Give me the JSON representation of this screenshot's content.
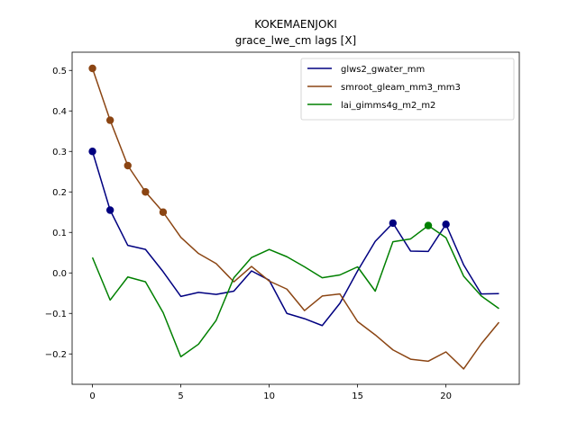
{
  "chart_data": {
    "type": "line",
    "title": "KOKEMAENJOKI",
    "subtitle": "grace_lwe_cm lags [X]",
    "xlabel": "",
    "ylabel": "",
    "xlim": [
      -1.15,
      24.15
    ],
    "ylim": [
      -0.275,
      0.545
    ],
    "xticks": [
      0,
      5,
      10,
      15,
      20
    ],
    "yticks": [
      -0.2,
      -0.1,
      0.0,
      0.1,
      0.2,
      0.3,
      0.4,
      0.5
    ],
    "ytick_labels": [
      "−0.2",
      "−0.1",
      "0.0",
      "0.1",
      "0.2",
      "0.3",
      "0.4",
      "0.5"
    ],
    "grid": false,
    "legend_position": "top-right",
    "x": [
      0,
      1,
      2,
      3,
      4,
      5,
      6,
      7,
      8,
      9,
      10,
      11,
      12,
      13,
      14,
      15,
      16,
      17,
      18,
      19,
      20,
      21,
      22,
      23
    ],
    "series": [
      {
        "name": "glws2_gwater_mm",
        "color": "#000080",
        "values": [
          0.3,
          0.155,
          0.068,
          0.058,
          0.003,
          -0.058,
          -0.048,
          -0.053,
          -0.045,
          0.005,
          -0.018,
          -0.1,
          -0.113,
          -0.13,
          -0.075,
          0.005,
          0.078,
          0.123,
          0.054,
          0.053,
          0.12,
          0.02,
          -0.052,
          -0.051
        ],
        "markers_at": [
          0,
          1,
          17,
          20
        ]
      },
      {
        "name": "smroot_gleam_mm3_mm3",
        "color": "#8B4513",
        "values": [
          0.505,
          0.377,
          0.265,
          0.2,
          0.15,
          0.088,
          0.048,
          0.023,
          -0.022,
          0.016,
          -0.02,
          -0.04,
          -0.093,
          -0.057,
          -0.052,
          -0.12,
          -0.153,
          -0.19,
          -0.213,
          -0.218,
          -0.195,
          -0.237,
          -0.175,
          -0.122
        ],
        "markers_at": [
          0,
          1,
          2,
          3,
          4
        ]
      },
      {
        "name": "lai_gimms4g_m2_m2",
        "color": "#008000",
        "values": [
          0.038,
          -0.067,
          -0.01,
          -0.022,
          -0.098,
          -0.207,
          -0.176,
          -0.117,
          -0.012,
          0.038,
          0.058,
          0.04,
          0.015,
          -0.012,
          -0.005,
          0.015,
          -0.045,
          0.077,
          0.084,
          0.117,
          0.087,
          -0.008,
          -0.057,
          -0.088
        ],
        "markers_at": [
          19
        ]
      }
    ]
  }
}
